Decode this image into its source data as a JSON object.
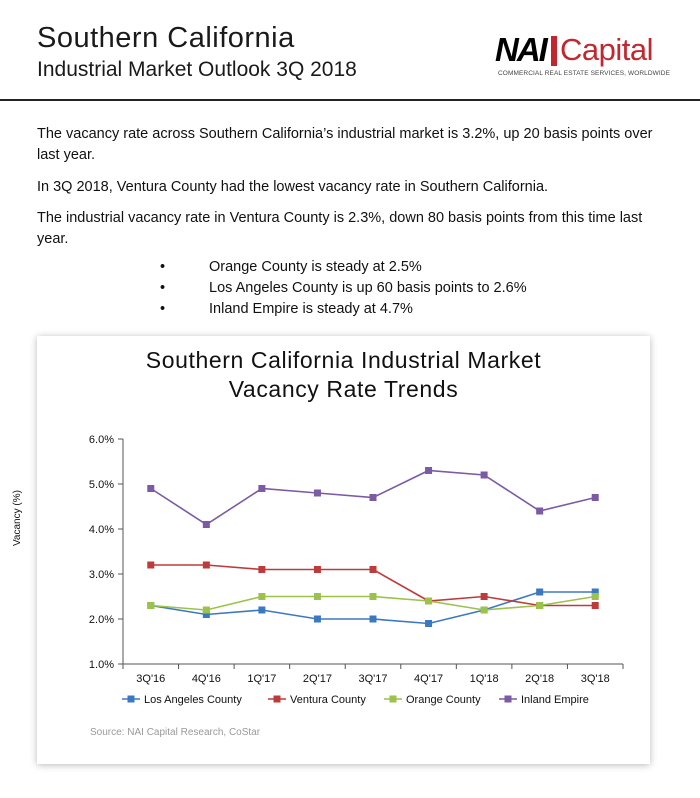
{
  "header": {
    "title": "Southern California",
    "subtitle": "Industrial Market Outlook 3Q 2018",
    "logo": {
      "nai": "NAI",
      "capital": "Capital",
      "tagline": "COMMERCIAL REAL ESTATE SERVICES, WORLDWIDE"
    }
  },
  "body": {
    "p1": "The vacancy rate across Southern California’s industrial market is 3.2%, up 20 basis points over last year.",
    "p2": "In 3Q 2018, Ventura County had the lowest vacancy rate in Southern California.",
    "p3": "The industrial vacancy rate in Ventura County is 2.3%, down 80 basis points from this time last year.",
    "bullets": [
      "Orange County is steady at 2.5%",
      "Los Angeles County is up 60 basis points to 2.6%",
      "Inland Empire is steady at 4.7%"
    ],
    "bullet_glyph": "•"
  },
  "chart": {
    "title_line1": "Southern California Industrial Market",
    "title_line2": "Vacancy Rate Trends",
    "source": "Source: NAI Capital Research, CoStar"
  },
  "chart_data": {
    "type": "line",
    "title": "Southern California Industrial Market Vacancy Rate Trends",
    "ylabel": "Vacancy (%)",
    "xlabel": "",
    "categories": [
      "3Q'16",
      "4Q'16",
      "1Q'17",
      "2Q'17",
      "3Q'17",
      "4Q'17",
      "1Q'18",
      "2Q'18",
      "3Q'18"
    ],
    "ylim": [
      1.0,
      6.0
    ],
    "yticks": [
      "1.0%",
      "2.0%",
      "3.0%",
      "4.0%",
      "5.0%",
      "6.0%"
    ],
    "ytick_values": [
      1.0,
      2.0,
      3.0,
      4.0,
      5.0,
      6.0
    ],
    "grid": false,
    "legend_position": "bottom",
    "series": [
      {
        "name": "Los Angeles County",
        "color": "#3b78c2",
        "values": [
          2.3,
          2.1,
          2.2,
          2.0,
          2.0,
          1.9,
          2.2,
          2.6,
          2.6
        ]
      },
      {
        "name": "Ventura County",
        "color": "#be3b3b",
        "values": [
          3.2,
          3.2,
          3.1,
          3.1,
          3.1,
          2.4,
          2.5,
          2.3,
          2.3
        ]
      },
      {
        "name": "Orange County",
        "color": "#9bc24a",
        "values": [
          2.3,
          2.2,
          2.5,
          2.5,
          2.5,
          2.4,
          2.2,
          2.3,
          2.5
        ]
      },
      {
        "name": "Inland Empire",
        "color": "#7b5aa6",
        "values": [
          4.9,
          4.1,
          4.9,
          4.8,
          4.7,
          5.3,
          5.2,
          4.4,
          4.7
        ]
      }
    ]
  }
}
